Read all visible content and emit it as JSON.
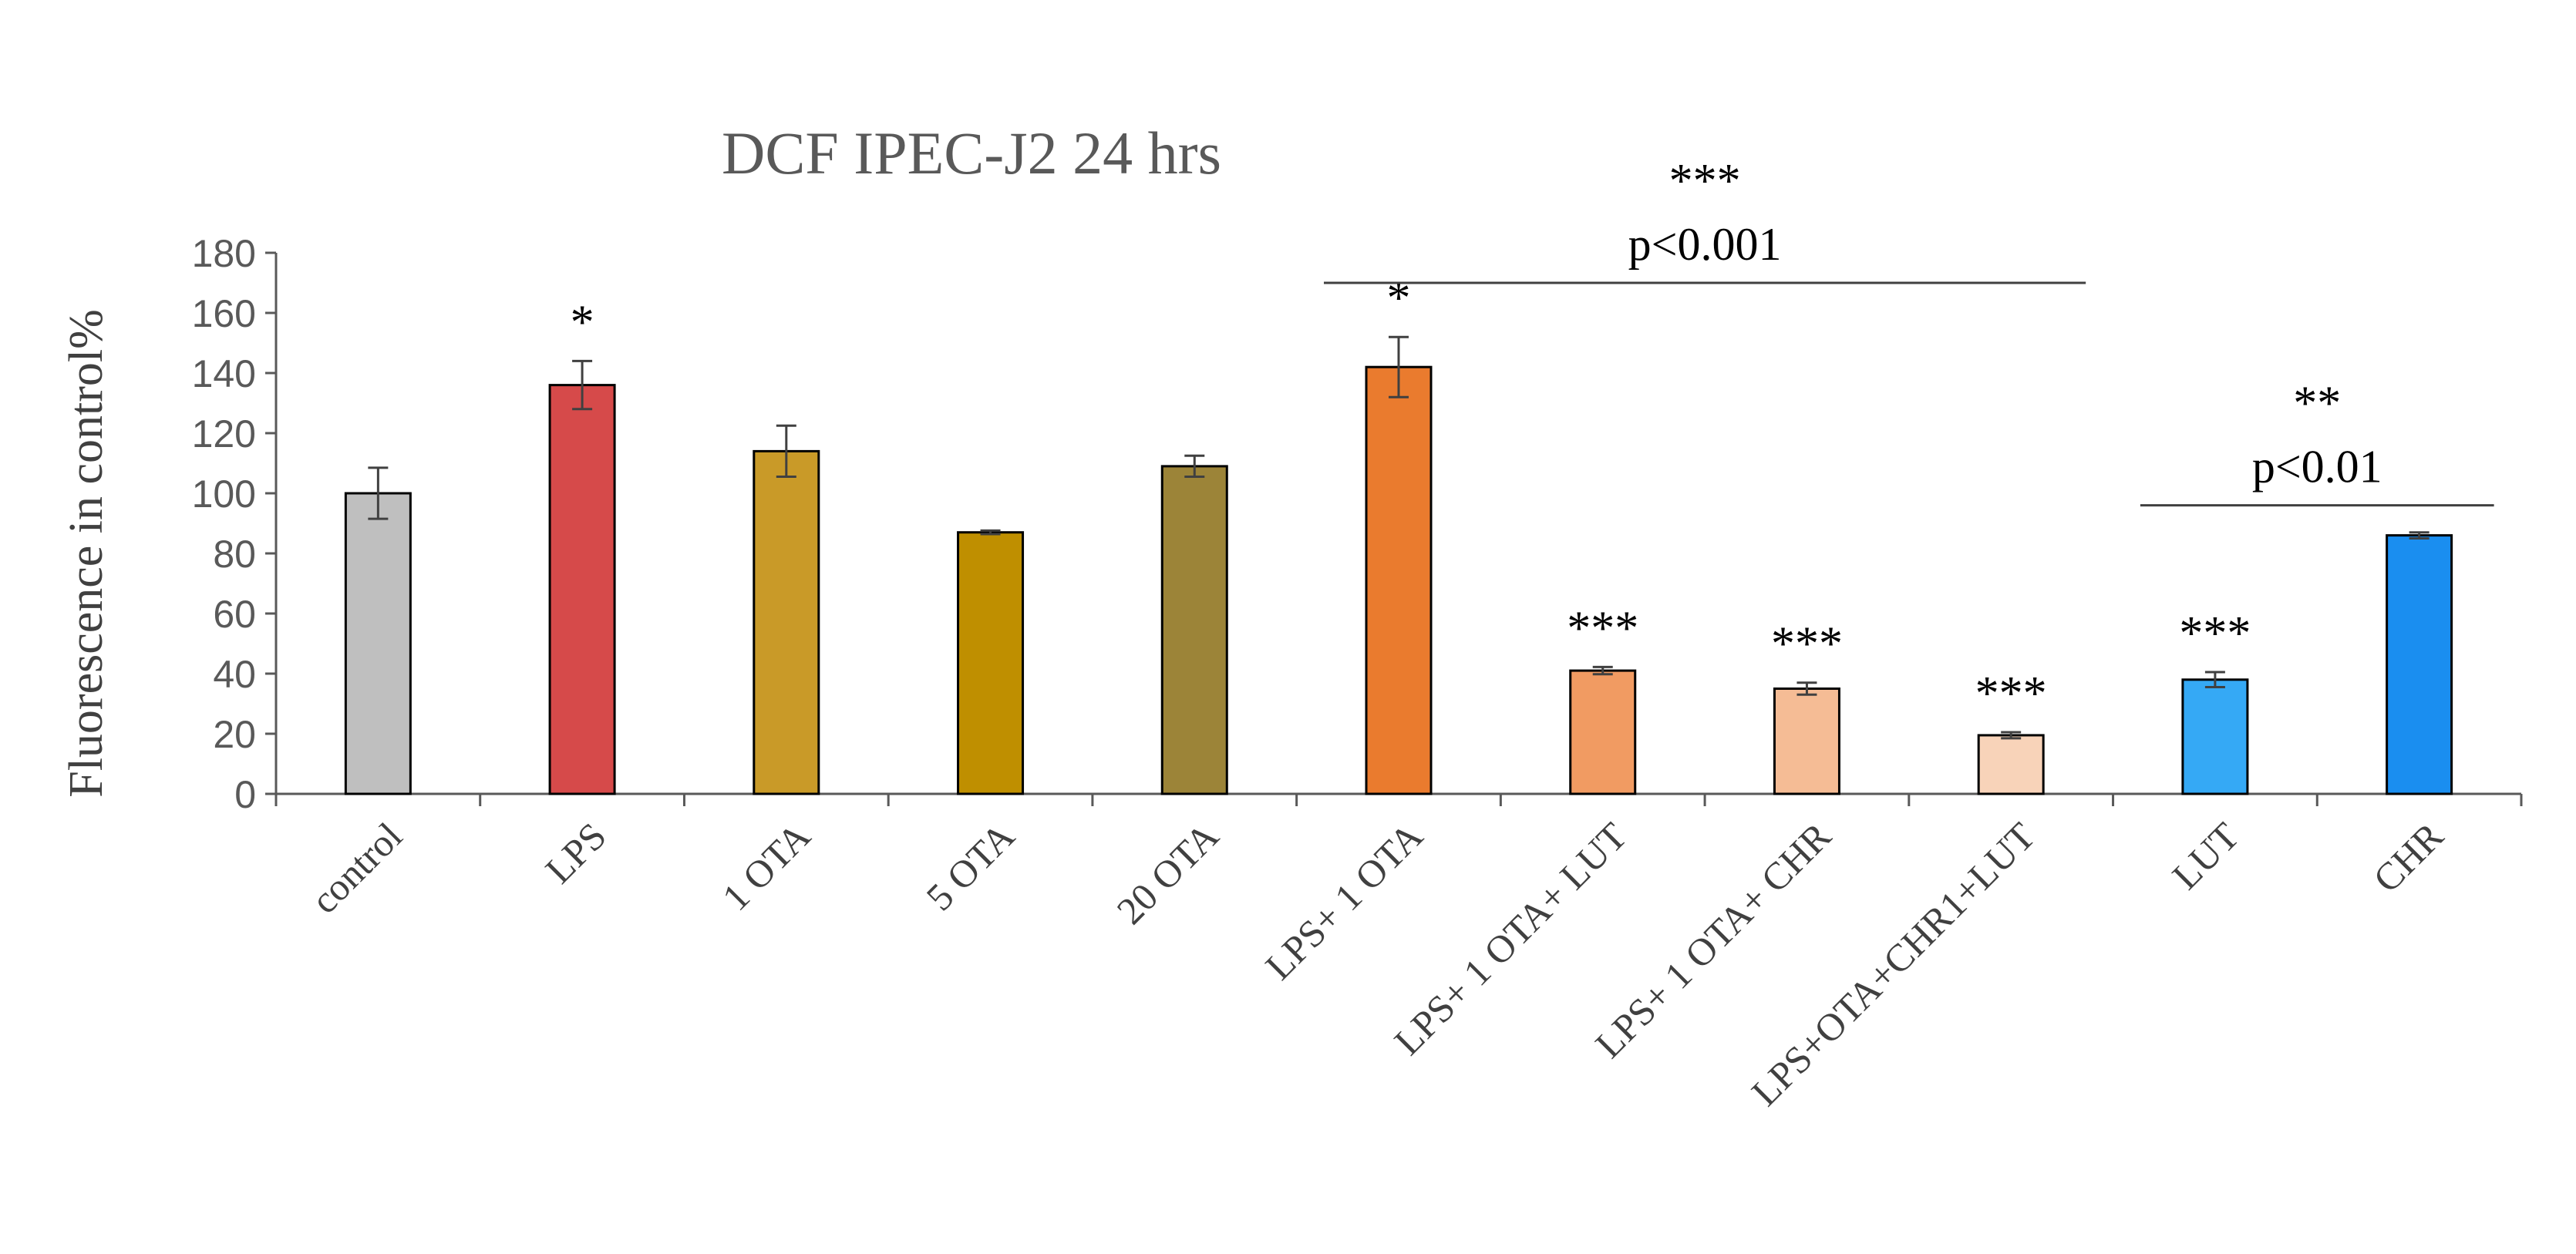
{
  "chart_data": {
    "type": "bar",
    "title": "DCF IPEC-J2 24 hrs",
    "ylabel": "Fluorescence in control%",
    "xlabel": "",
    "ylim": [
      0,
      180
    ],
    "yticks": [
      "0",
      "20",
      "40",
      "60",
      "80",
      "100",
      "120",
      "140",
      "160",
      "180"
    ],
    "grid": false,
    "categories": [
      "control",
      "LPS",
      "1 OTA",
      "5 OTA",
      "20 OTA",
      "LPS+ 1 OTA",
      "LPS+ 1 OTA+ LUT",
      "LPS+ 1 OTA+ CHR",
      "LPS+OTA+CHR1+LUT",
      "LUT",
      "CHR"
    ],
    "values": [
      100,
      136,
      114,
      87,
      109,
      142,
      41,
      35,
      19.5,
      38,
      86
    ],
    "errors": [
      8.5,
      8,
      8.5,
      0.6,
      3.5,
      10,
      1.2,
      2,
      1,
      2.5,
      1
    ],
    "colors": [
      "#bfbfbf",
      "#d64a4a",
      "#c99a28",
      "#bf8f00",
      "#9c8438",
      "#ea7b2e",
      "#f19b62",
      "#f5bc95",
      "#f8d3b9",
      "#35a9f5",
      "#1a8ef0"
    ],
    "significance": [
      "",
      "*",
      "",
      "",
      "",
      "*",
      "***",
      "***",
      "***",
      "***",
      ""
    ],
    "brackets": [
      {
        "from": 5,
        "to": 8,
        "stars": "***",
        "label": "p<0.001"
      },
      {
        "from": 9,
        "to": 10,
        "stars": "**",
        "label": "p<0.01"
      }
    ]
  }
}
